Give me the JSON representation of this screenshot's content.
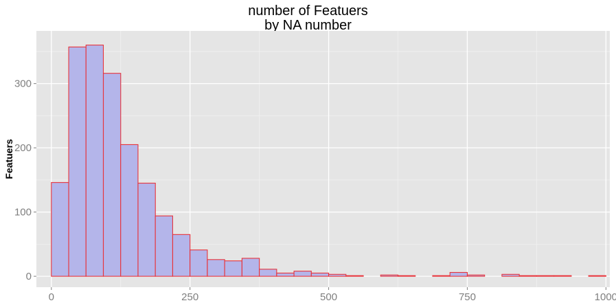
{
  "chart_data": {
    "type": "bar",
    "title": "number of Featuers",
    "subtitle": "by NA number",
    "xlabel": "",
    "ylabel": "Featuers",
    "xlim": [
      -27,
      1007
    ],
    "ylim": [
      -17,
      382
    ],
    "bin_width": 31.25,
    "x": [
      15.6,
      46.9,
      78.1,
      109.4,
      140.6,
      171.9,
      203.1,
      234.4,
      265.6,
      296.9,
      328.1,
      359.4,
      390.6,
      421.9,
      453.1,
      484.4,
      515.6,
      546.9,
      578.1,
      609.4,
      640.6,
      671.9,
      703.1,
      734.4,
      765.6,
      796.9,
      828.1,
      859.4,
      890.6,
      921.9,
      953.1,
      984.4
    ],
    "values": [
      146,
      357,
      360,
      316,
      205,
      145,
      94,
      65,
      41,
      26,
      24,
      28,
      11,
      5,
      8,
      5,
      3,
      1,
      0,
      2,
      1,
      0,
      1,
      6,
      2,
      0,
      3,
      1,
      1,
      1,
      0,
      1
    ],
    "xticks": [
      0,
      250,
      500,
      750,
      1000
    ],
    "yticks": [
      0,
      100,
      200,
      300
    ],
    "grid": true,
    "colors": {
      "fill": "#b4b5ea",
      "stroke": "#e8333a",
      "panel": "#e5e5e5",
      "grid_major": "#ffffff",
      "grid_minor": "#f1f1f1",
      "tick_label": "#7f7f7f"
    }
  }
}
